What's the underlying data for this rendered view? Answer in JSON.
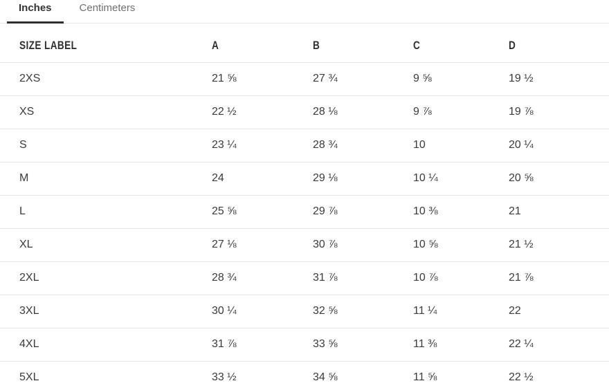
{
  "tabs": {
    "inches": "Inches",
    "centimeters": "Centimeters"
  },
  "table": {
    "headers": {
      "size": "SIZE LABEL",
      "a": "A",
      "b": "B",
      "c": "C",
      "d": "D"
    },
    "rows": [
      {
        "size": "2XS",
        "a": "21 ⅝",
        "b": "27 ¾",
        "c": "9 ⅝",
        "d": "19 ½"
      },
      {
        "size": "XS",
        "a": "22 ½",
        "b": "28 ⅛",
        "c": "9 ⅞",
        "d": "19 ⅞"
      },
      {
        "size": "S",
        "a": "23 ¼",
        "b": "28 ¾",
        "c": "10",
        "d": "20 ¼"
      },
      {
        "size": "M",
        "a": "24",
        "b": "29 ⅛",
        "c": "10 ¼",
        "d": "20 ⅝"
      },
      {
        "size": "L",
        "a": "25 ⅝",
        "b": "29 ⅞",
        "c": "10 ⅜",
        "d": "21"
      },
      {
        "size": "XL",
        "a": "27 ⅛",
        "b": "30 ⅞",
        "c": "10 ⅝",
        "d": "21 ½"
      },
      {
        "size": "2XL",
        "a": "28 ¾",
        "b": "31 ⅞",
        "c": "10 ⅞",
        "d": "21 ⅞"
      },
      {
        "size": "3XL",
        "a": "30 ¼",
        "b": "32 ⅝",
        "c": "11 ¼",
        "d": "22"
      },
      {
        "size": "4XL",
        "a": "31 ⅞",
        "b": "33 ⅝",
        "c": "11 ⅜",
        "d": "22 ¼"
      },
      {
        "size": "5XL",
        "a": "33 ½",
        "b": "34 ⅝",
        "c": "11 ⅝",
        "d": "22 ½"
      }
    ]
  },
  "colors": {
    "active_tab_underline": "#2e2e2e",
    "active_tab_text": "#333333",
    "inactive_tab_text": "#6f6f6f",
    "body_text": "#3a3a3a",
    "divider": "#e4e4e4",
    "background": "#ffffff"
  }
}
